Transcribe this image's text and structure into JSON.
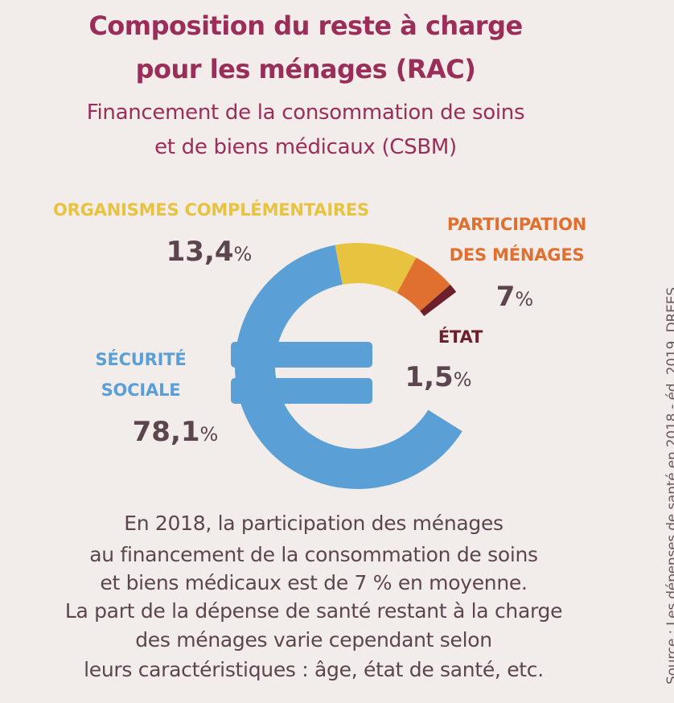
{
  "title": [
    "Composition du reste à charge",
    "pour les ménages (RAC)"
  ],
  "subtitle": [
    "Financement de la consommation de soins",
    "et de biens médicaux (CSBM)"
  ],
  "chart_data": {
    "type": "pie",
    "style": "euro-sign donut",
    "unit": "%",
    "series": [
      {
        "name": "SÉCURITÉ SOCIALE",
        "label_lines": [
          "SÉCURITÉ",
          "SOCIALE"
        ],
        "value": 78.1,
        "display": "78,1",
        "color": "#5aa0d6"
      },
      {
        "name": "ORGANISMES COMPLÉMENTAIRES",
        "label_lines": [
          "ORGANISMES COMPLÉMENTAIRES"
        ],
        "value": 13.4,
        "display": "13,4",
        "color": "#e8c33f"
      },
      {
        "name": "PARTICIPATION DES MÉNAGES",
        "label_lines": [
          "PARTICIPATION",
          "DES MÉNAGES"
        ],
        "value": 7,
        "display": "7",
        "color": "#e0702f"
      },
      {
        "name": "ÉTAT",
        "label_lines": [
          "ÉTAT"
        ],
        "value": 1.5,
        "display": "1,5",
        "color": "#6e1f2c"
      }
    ]
  },
  "body_text": [
    "En 2018, la participation des ménages",
    "au financement de la consommation de soins",
    "et biens médicaux est de 7 % en moyenne.",
    "La part de la dépense de santé restant à la charge",
    "des ménages varie cependant selon",
    "leurs caractéristiques : âge, état de santé, etc."
  ],
  "source": "Source : Les dépenses de santé en 2018 - éd. 2019. DREES"
}
